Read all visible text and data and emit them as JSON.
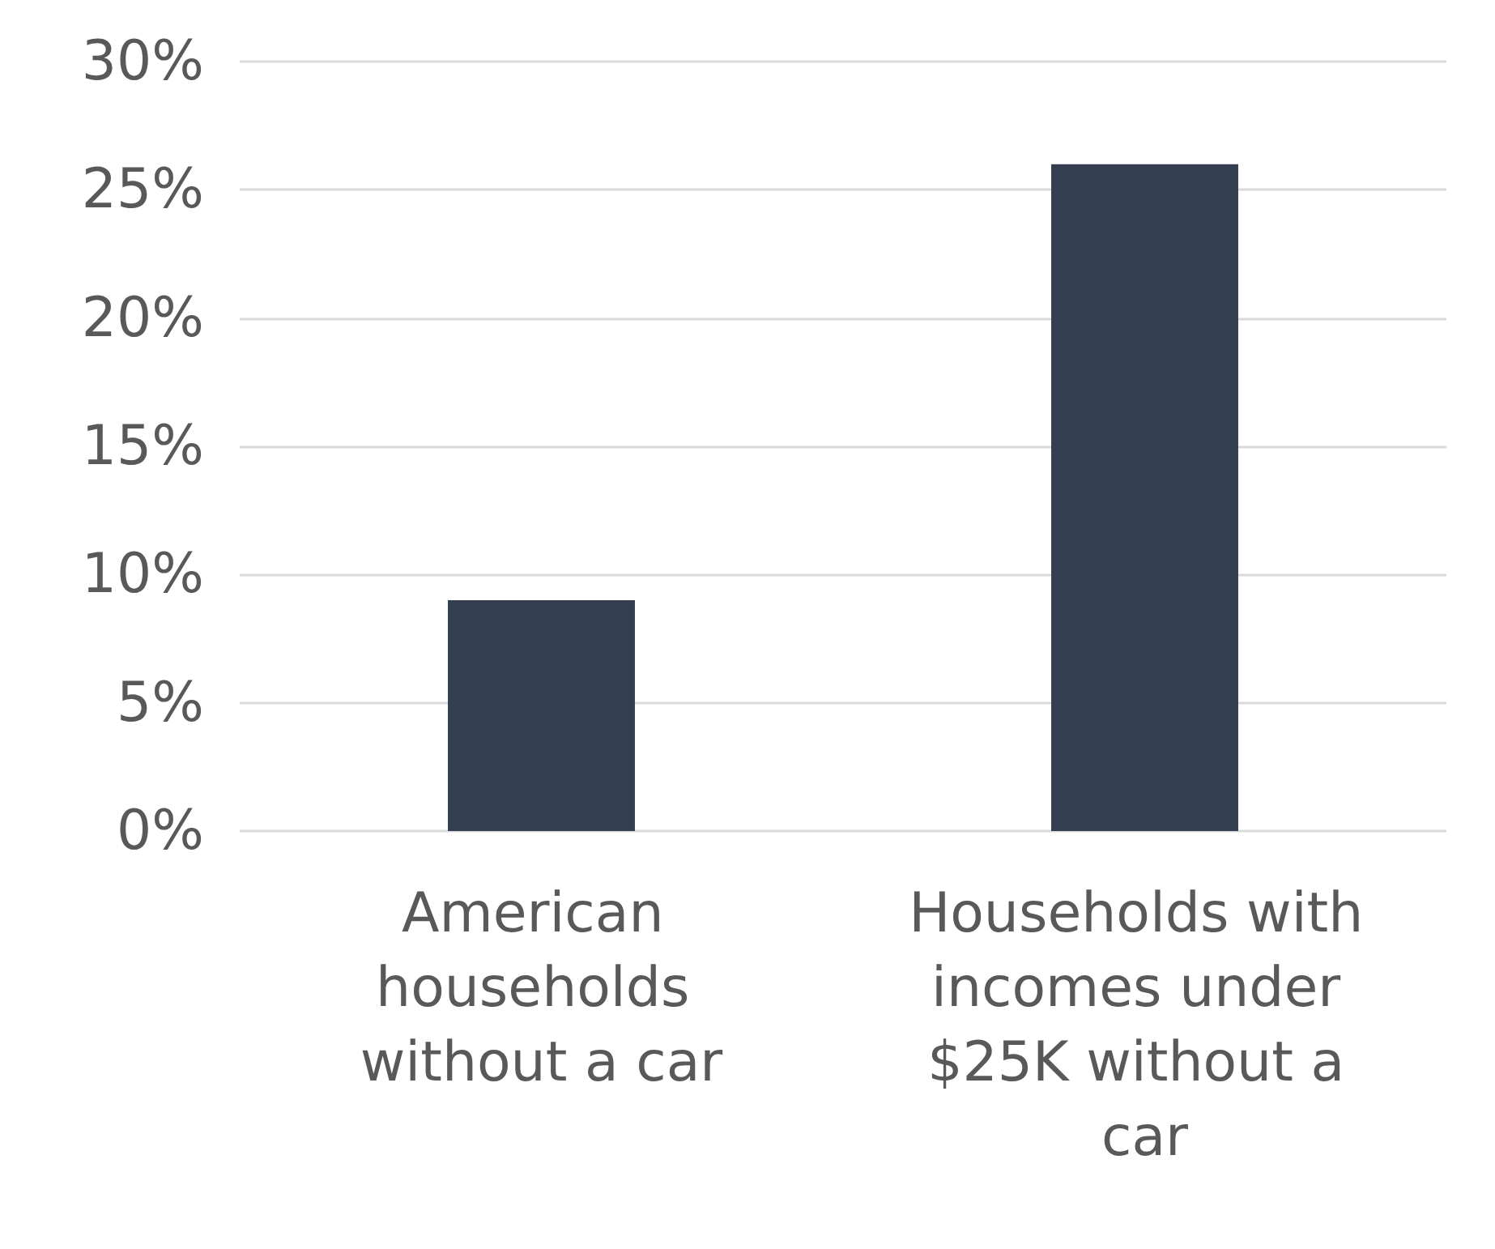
{
  "chart_data": {
    "type": "bar",
    "categories": [
      "American households without a car",
      "Households with incomes under $25K without a car"
    ],
    "values": [
      9,
      26
    ],
    "color": "#333f50",
    "ylim": [
      0,
      30
    ],
    "yticks": [
      {
        "value": 0,
        "label": "0%"
      },
      {
        "value": 5,
        "label": "5%"
      },
      {
        "value": 10,
        "label": "10%"
      },
      {
        "value": 15,
        "label": "15%"
      },
      {
        "value": 20,
        "label": "20%"
      },
      {
        "value": 25,
        "label": "25%"
      },
      {
        "value": 30,
        "label": "30%"
      }
    ],
    "grid": "y"
  }
}
